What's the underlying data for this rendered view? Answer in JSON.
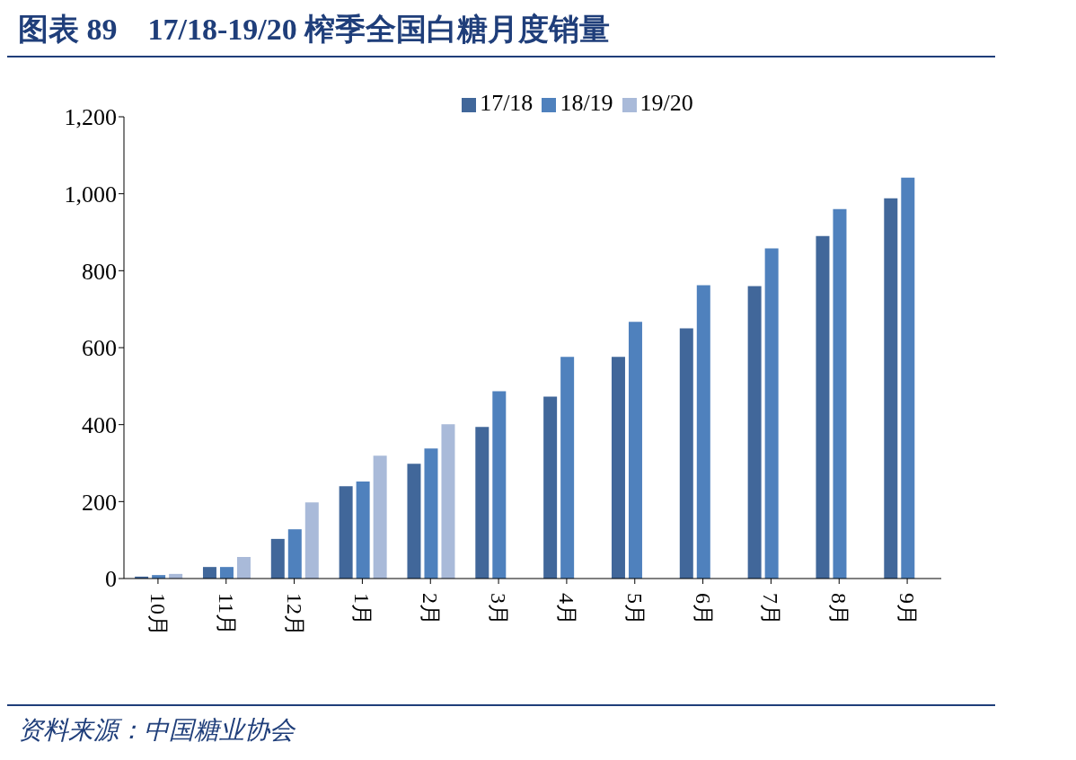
{
  "chart_data": {
    "type": "bar",
    "title": "图表 89　17/18-19/20 榨季全国白糖月度销量",
    "categories": [
      "10月",
      "11月",
      "12月",
      "1月",
      "2月",
      "3月",
      "4月",
      "5月",
      "6月",
      "7月",
      "8月",
      "9月"
    ],
    "series": [
      {
        "name": "17/18",
        "color": "#41679a",
        "values": [
          5,
          30,
          103,
          240,
          298,
          394,
          473,
          576,
          650,
          760,
          890,
          988
        ]
      },
      {
        "name": "18/19",
        "color": "#4f81bd",
        "values": [
          9,
          30,
          128,
          252,
          338,
          487,
          576,
          667,
          762,
          858,
          960,
          1042
        ]
      },
      {
        "name": "19/20",
        "color": "#a9bad9",
        "values": [
          12,
          56,
          198,
          319,
          401,
          null,
          null,
          null,
          null,
          null,
          null,
          null
        ]
      }
    ],
    "ylim": [
      0,
      1200
    ],
    "yticks": [
      0,
      {
        "value": 200,
        "label": "200"
      },
      {
        "value": 400,
        "label": "400"
      },
      {
        "value": 600,
        "label": "600"
      },
      {
        "value": 800,
        "label": "800"
      },
      {
        "value": 1000,
        "label": "1,000"
      },
      {
        "value": 1200,
        "label": "1,200"
      }
    ],
    "grid": false,
    "legend": "top",
    "annotations": [
      "资料来源：中国糖业协会"
    ]
  }
}
